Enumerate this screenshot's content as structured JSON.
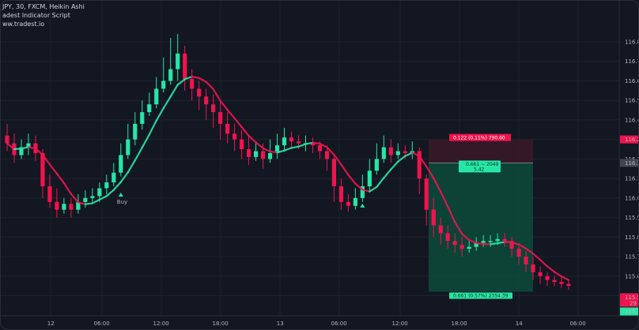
{
  "legend": {
    "line1": "JPY, 30, FXCM, Heikin Ashi",
    "line2": "adest Indicator Script",
    "line3": "ww.tradest.io"
  },
  "colors": {
    "background": "#131722",
    "bull": "#26e6a6",
    "bear": "#f0134d",
    "tp_zone": "#0d4a3b",
    "sl_zone": "#3a1a26",
    "grid": "#1e222d"
  },
  "price_axis": {
    "ticks": [
      "116.8",
      "116.7",
      "116.6",
      "116.5",
      "116.4",
      "116.3",
      "116.2",
      "116.1",
      "116.0",
      "115.9",
      "115.8",
      "115.7",
      "115.6",
      "115.5"
    ]
  },
  "price_badges": {
    "sl": "116.3",
    "entry": "116.1",
    "current": "115.5",
    "countdown": "29",
    "tp": "115.5"
  },
  "time_axis": {
    "ticks": [
      "12",
      "06:00",
      "12:00",
      "18:00",
      "13",
      "06:00",
      "12:00",
      "18:00",
      "14",
      "06:00"
    ]
  },
  "signal": {
    "buy_label": "Buy"
  },
  "trade_boxes": {
    "sl_label": "0.122 (0.11%) 790.60",
    "entry_label_1": "0.661 ~ 2049",
    "entry_label_2": "5.42",
    "tp_label": "0.661 (0.57%) 2354.39"
  },
  "chart_data": {
    "type": "candlestick",
    "style": "Heikin Ashi",
    "timeframe": "30",
    "y_ticks": [
      116.8,
      116.7,
      116.6,
      116.5,
      116.4,
      116.3,
      116.2,
      116.1,
      116.0,
      115.9,
      115.8,
      115.7,
      115.6,
      115.5
    ],
    "x_ticks": [
      "12",
      "06:00",
      "12:00",
      "18:00",
      "13",
      "06:00",
      "12:00",
      "18:00",
      "14",
      "06:00"
    ],
    "candles": [
      [
        116.32,
        116.28,
        116.38,
        116.24
      ],
      [
        116.28,
        116.22,
        116.33,
        116.18
      ],
      [
        116.22,
        116.26,
        116.3,
        116.2
      ],
      [
        116.26,
        116.28,
        116.33,
        116.22
      ],
      [
        116.28,
        116.23,
        116.32,
        116.19
      ],
      [
        116.23,
        116.06,
        116.25,
        116.0
      ],
      [
        116.06,
        115.98,
        116.12,
        115.95
      ],
      [
        115.98,
        115.94,
        116.05,
        115.9
      ],
      [
        115.94,
        115.97,
        116.0,
        115.92
      ],
      [
        115.97,
        115.94,
        116.0,
        115.9
      ],
      [
        115.94,
        115.98,
        116.02,
        115.92
      ],
      [
        115.98,
        116.0,
        116.04,
        115.95
      ],
      [
        116.0,
        116.01,
        116.05,
        115.97
      ],
      [
        116.01,
        116.05,
        116.08,
        115.98
      ],
      [
        116.05,
        116.08,
        116.12,
        116.02
      ],
      [
        116.08,
        116.13,
        116.18,
        116.06
      ],
      [
        116.13,
        116.22,
        116.28,
        116.11
      ],
      [
        116.22,
        116.3,
        116.38,
        116.2
      ],
      [
        116.3,
        116.38,
        116.44,
        116.27
      ],
      [
        116.38,
        116.44,
        116.5,
        116.35
      ],
      [
        116.44,
        116.48,
        116.54,
        116.42
      ],
      [
        116.48,
        116.56,
        116.62,
        116.46
      ],
      [
        116.56,
        116.6,
        116.72,
        116.54
      ],
      [
        116.6,
        116.66,
        116.82,
        116.58
      ],
      [
        116.66,
        116.74,
        116.84,
        116.6
      ],
      [
        116.74,
        116.61,
        116.78,
        116.55
      ],
      [
        116.61,
        116.56,
        116.66,
        116.5
      ],
      [
        116.56,
        116.52,
        116.6,
        116.45
      ],
      [
        116.52,
        116.48,
        116.56,
        116.4
      ],
      [
        116.48,
        116.44,
        116.53,
        116.36
      ],
      [
        116.44,
        116.38,
        116.5,
        116.3
      ],
      [
        116.38,
        116.33,
        116.44,
        116.28
      ],
      [
        116.33,
        116.3,
        116.38,
        116.24
      ],
      [
        116.3,
        116.25,
        116.35,
        116.2
      ],
      [
        116.25,
        116.21,
        116.32,
        116.17
      ],
      [
        116.21,
        116.24,
        116.29,
        116.19
      ],
      [
        116.24,
        116.2,
        116.28,
        116.15
      ],
      [
        116.2,
        116.23,
        116.3,
        116.18
      ],
      [
        116.23,
        116.27,
        116.33,
        116.2
      ],
      [
        116.27,
        116.31,
        116.36,
        116.24
      ],
      [
        116.31,
        116.29,
        116.34,
        116.26
      ],
      [
        116.29,
        116.28,
        116.32,
        116.25
      ],
      [
        116.28,
        116.28,
        116.32,
        116.24
      ],
      [
        116.28,
        116.27,
        116.31,
        116.23
      ],
      [
        116.27,
        116.24,
        116.29,
        116.2
      ],
      [
        116.24,
        116.2,
        116.27,
        116.14
      ],
      [
        116.2,
        116.06,
        116.22,
        115.98
      ],
      [
        116.06,
        115.98,
        116.1,
        115.94
      ],
      [
        115.98,
        115.96,
        116.02,
        115.93
      ],
      [
        115.96,
        116.0,
        116.05,
        115.94
      ],
      [
        116.0,
        116.06,
        116.12,
        115.98
      ],
      [
        116.06,
        116.14,
        116.2,
        116.03
      ],
      [
        116.14,
        116.2,
        116.28,
        116.12
      ],
      [
        116.2,
        116.26,
        116.32,
        116.18
      ],
      [
        116.26,
        116.22,
        116.3,
        116.18
      ],
      [
        116.22,
        116.24,
        116.28,
        116.2
      ],
      [
        116.24,
        116.23,
        116.27,
        116.2
      ],
      [
        116.23,
        116.24,
        116.29,
        116.2
      ],
      [
        116.24,
        116.1,
        116.26,
        116.02
      ],
      [
        116.1,
        115.94,
        116.12,
        115.86
      ],
      [
        115.94,
        115.86,
        116.0,
        115.8
      ],
      [
        115.86,
        115.82,
        115.9,
        115.76
      ],
      [
        115.82,
        115.78,
        115.86,
        115.74
      ],
      [
        115.78,
        115.76,
        115.82,
        115.72
      ],
      [
        115.76,
        115.74,
        115.8,
        115.7
      ],
      [
        115.74,
        115.75,
        115.78,
        115.72
      ],
      [
        115.75,
        115.77,
        115.8,
        115.73
      ],
      [
        115.77,
        115.78,
        115.81,
        115.75
      ],
      [
        115.78,
        115.78,
        115.81,
        115.75
      ],
      [
        115.78,
        115.79,
        115.82,
        115.76
      ],
      [
        115.79,
        115.78,
        115.82,
        115.75
      ],
      [
        115.78,
        115.74,
        115.8,
        115.7
      ],
      [
        115.74,
        115.7,
        115.77,
        115.66
      ],
      [
        115.7,
        115.66,
        115.73,
        115.62
      ],
      [
        115.66,
        115.62,
        115.7,
        115.58
      ],
      [
        115.62,
        115.6,
        115.65,
        115.56
      ],
      [
        115.6,
        115.58,
        115.62,
        115.55
      ],
      [
        115.58,
        115.57,
        115.6,
        115.55
      ],
      [
        115.57,
        115.56,
        115.59,
        115.54
      ],
      [
        115.56,
        115.55,
        115.58,
        115.53
      ]
    ],
    "trade": {
      "stop_loss": 116.3,
      "entry": 116.18,
      "take_profit": 115.52,
      "sl_text": "0.122 (0.11%) 790.60",
      "entry_text": "0.661 ~ 2049 5.42",
      "tp_text": "0.661 (0.57%) 2354.39"
    },
    "signals": [
      {
        "type": "buy",
        "label": "Buy"
      }
    ]
  }
}
